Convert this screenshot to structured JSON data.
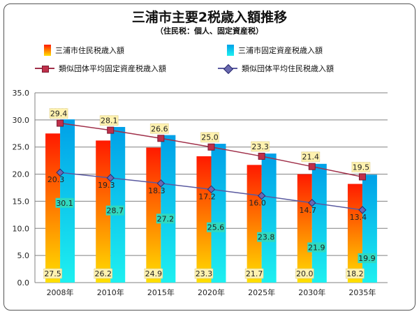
{
  "title": "三浦市主要2税歳入額推移",
  "subtitle": "（住民税：個人、固定資産税）",
  "legend": {
    "s1": "三浦市住民税歳入額",
    "s2": "三浦市固定資産税歳入額",
    "s3": "類似団体平均固定資産税歳入額",
    "s4": "類似団体平均住民税歳入額"
  },
  "colors": {
    "bar1_top": "#ff1a00",
    "bar1_bottom": "#ffe000",
    "bar2_top": "#00a0e8",
    "bar2_bottom": "#1ef0f0",
    "line_fixed": "#a0304a",
    "line_resident": "#5a5aa0",
    "label_cream": "#fff2b0",
    "label_cyan": "#30d9c0",
    "grid": "#808080"
  },
  "chart_data": {
    "type": "bar",
    "categories": [
      "2008年",
      "2010年",
      "2015年",
      "2020年",
      "2025年",
      "2030年",
      "2035年"
    ],
    "ylim": [
      0,
      35
    ],
    "yticks": [
      "0.0",
      "5.0",
      "10.0",
      "15.0",
      "20.0",
      "25.0",
      "30.0",
      "35.0"
    ],
    "grid": true,
    "legend_position": "top",
    "series": [
      {
        "name": "三浦市住民税歳入額",
        "kind": "bar",
        "values": [
          27.5,
          26.2,
          24.9,
          23.3,
          21.7,
          20.0,
          18.2
        ],
        "labels": [
          "27.5",
          "26.2",
          "24.9",
          "23.3",
          "21.7",
          "20.0",
          "18.2"
        ]
      },
      {
        "name": "三浦市固定資産税歳入額",
        "kind": "bar",
        "values": [
          30.1,
          28.7,
          27.2,
          25.6,
          23.8,
          21.9,
          19.9
        ],
        "labels": [
          "30.1",
          "28.7",
          "27.2",
          "25.6",
          "23.8",
          "21.9",
          "19.9"
        ]
      },
      {
        "name": "類似団体平均固定資産税歳入額",
        "kind": "line",
        "values": [
          29.4,
          28.1,
          26.6,
          25.0,
          23.3,
          21.4,
          19.5
        ],
        "labels": [
          "29.4",
          "28.1",
          "26.6",
          "25.0",
          "23.3",
          "21.4",
          "19.5"
        ]
      },
      {
        "name": "類似団体平均住民税歳入額",
        "kind": "line",
        "values": [
          20.3,
          19.3,
          18.3,
          17.2,
          16.0,
          14.7,
          13.4
        ],
        "labels": [
          "20.3",
          "19.3",
          "18.3",
          "17.2",
          "16.0",
          "14.7",
          "13.4"
        ]
      }
    ]
  }
}
